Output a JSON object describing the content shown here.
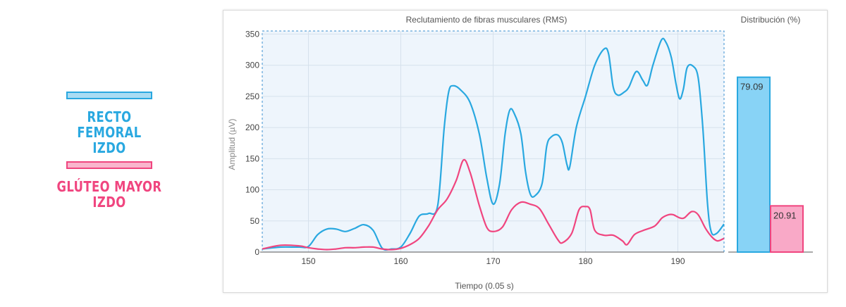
{
  "legend": [
    {
      "label": "RECTO FEMORAL\nIZDO",
      "color": "#29a8e0"
    },
    {
      "label": "GLÚTEO MAYOR\nIZDO",
      "color": "#f0457f"
    }
  ],
  "chart_data": [
    {
      "type": "line",
      "title": "Reclutamiento de fibras musculares (RMS)",
      "xlabel": "Tiempo (0.05 s)",
      "ylabel": "Amplitud (µV)",
      "xlim": [
        145,
        195
      ],
      "ylim": [
        0,
        355
      ],
      "xticks": [
        150,
        160,
        170,
        180,
        190
      ],
      "yticks": [
        0,
        50,
        100,
        150,
        200,
        250,
        300,
        350
      ],
      "grid": true,
      "series": [
        {
          "color": "#29a8e0",
          "points": [
            [
              145,
              5
            ],
            [
              147,
              8
            ],
            [
              149,
              8
            ],
            [
              150,
              9
            ],
            [
              151,
              28
            ],
            [
              152,
              37
            ],
            [
              153,
              37
            ],
            [
              154,
              33
            ],
            [
              155,
              38
            ],
            [
              156,
              44
            ],
            [
              157,
              35
            ],
            [
              158,
              6
            ],
            [
              159,
              5
            ],
            [
              160,
              8
            ],
            [
              161,
              30
            ],
            [
              162,
              58
            ],
            [
              163,
              62
            ],
            [
              164,
              75
            ],
            [
              164.7,
              200
            ],
            [
              165.2,
              258
            ],
            [
              165.7,
              267
            ],
            [
              166.5,
              260
            ],
            [
              167.5,
              240
            ],
            [
              168.5,
              190
            ],
            [
              169.3,
              120
            ],
            [
              170,
              77
            ],
            [
              170.7,
              110
            ],
            [
              171.3,
              190
            ],
            [
              171.8,
              228
            ],
            [
              172.3,
              222
            ],
            [
              173,
              190
            ],
            [
              173.5,
              130
            ],
            [
              174,
              94
            ],
            [
              174.5,
              90
            ],
            [
              175.3,
              110
            ],
            [
              175.8,
              170
            ],
            [
              176.3,
              185
            ],
            [
              177,
              188
            ],
            [
              177.5,
              175
            ],
            [
              178,
              140
            ],
            [
              178.3,
              137
            ],
            [
              179,
              200
            ],
            [
              180,
              250
            ],
            [
              181,
              300
            ],
            [
              182,
              326
            ],
            [
              182.5,
              318
            ],
            [
              183,
              265
            ],
            [
              183.5,
              252
            ],
            [
              184.2,
              257
            ],
            [
              184.7,
              265
            ],
            [
              185.5,
              290
            ],
            [
              186.2,
              276
            ],
            [
              186.7,
              268
            ],
            [
              187.3,
              300
            ],
            [
              188.2,
              340
            ],
            [
              188.7,
              337
            ],
            [
              189.3,
              312
            ],
            [
              189.8,
              270
            ],
            [
              190.2,
              246
            ],
            [
              190.6,
              262
            ],
            [
              191,
              296
            ],
            [
              191.6,
              299
            ],
            [
              192.2,
              280
            ],
            [
              192.7,
              200
            ],
            [
              193.2,
              80
            ],
            [
              193.6,
              33
            ],
            [
              194.2,
              30
            ],
            [
              195,
              45
            ]
          ]
        },
        {
          "color": "#f0457f",
          "points": [
            [
              145,
              5
            ],
            [
              147,
              11
            ],
            [
              149,
              10
            ],
            [
              150,
              7
            ],
            [
              151,
              5
            ],
            [
              152,
              4
            ],
            [
              153,
              5
            ],
            [
              154,
              7
            ],
            [
              155,
              7
            ],
            [
              156,
              8
            ],
            [
              157,
              8
            ],
            [
              158,
              5
            ],
            [
              159,
              4
            ],
            [
              160,
              6
            ],
            [
              161,
              12
            ],
            [
              162,
              22
            ],
            [
              163,
              42
            ],
            [
              164,
              68
            ],
            [
              165,
              85
            ],
            [
              166,
              115
            ],
            [
              166.8,
              148
            ],
            [
              167.5,
              128
            ],
            [
              168.5,
              75
            ],
            [
              169.3,
              40
            ],
            [
              170,
              33
            ],
            [
              171,
              40
            ],
            [
              172,
              68
            ],
            [
              173,
              80
            ],
            [
              174,
              77
            ],
            [
              175,
              70
            ],
            [
              176,
              45
            ],
            [
              177,
              20
            ],
            [
              177.5,
              15
            ],
            [
              178.5,
              30
            ],
            [
              179.3,
              68
            ],
            [
              180,
              73
            ],
            [
              180.5,
              68
            ],
            [
              181,
              35
            ],
            [
              182,
              27
            ],
            [
              183,
              27
            ],
            [
              184,
              18
            ],
            [
              184.5,
              12
            ],
            [
              185.3,
              28
            ],
            [
              186.3,
              35
            ],
            [
              187.5,
              42
            ],
            [
              188.3,
              55
            ],
            [
              189,
              60
            ],
            [
              189.5,
              60
            ],
            [
              190.2,
              55
            ],
            [
              190.7,
              55
            ],
            [
              191.5,
              65
            ],
            [
              192.2,
              60
            ],
            [
              193,
              38
            ],
            [
              193.7,
              24
            ],
            [
              194.3,
              18
            ],
            [
              195,
              22
            ]
          ]
        }
      ]
    },
    {
      "type": "bar",
      "title": "Distribución (%)",
      "categories": [
        "RECTO FEMORAL IZDO",
        "GLÚTEO MAYOR IZDO"
      ],
      "values": [
        79.09,
        20.91
      ],
      "value_labels": [
        "79.09",
        "20.91"
      ],
      "ylim": [
        0,
        100
      ],
      "colors": [
        "#88d3f6",
        "#f9a9c7"
      ],
      "border_colors": [
        "#29a8e0",
        "#f0457f"
      ]
    }
  ]
}
